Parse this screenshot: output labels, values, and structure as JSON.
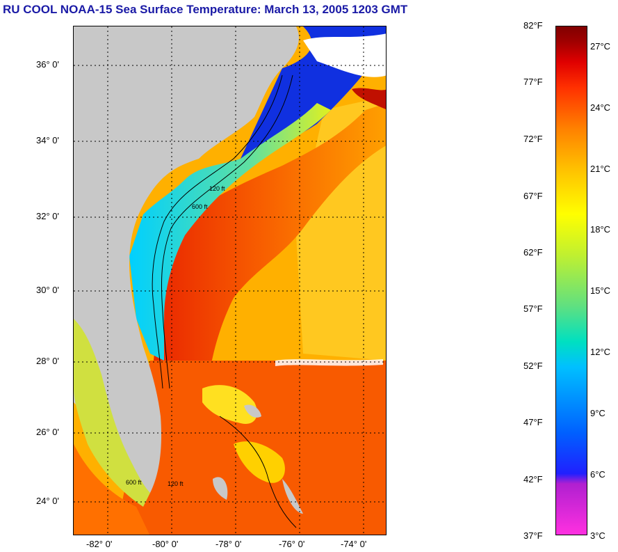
{
  "title": "RU COOL  NOAA-15  Sea Surface Temperature:  March 13, 2005 1203 GMT",
  "latitude_labels": [
    "36° 0'",
    "34° 0'",
    "32° 0'",
    "30° 0'",
    "28° 0'",
    "26° 0'",
    "24° 0'"
  ],
  "longitude_labels": [
    "-82° 0'",
    "-80° 0'",
    "-78° 0'",
    "-76° 0'",
    "-74° 0'"
  ],
  "colorbar": {
    "fahrenheit": [
      "82°F",
      "77°F",
      "72°F",
      "67°F",
      "62°F",
      "57°F",
      "52°F",
      "47°F",
      "42°F",
      "37°F"
    ],
    "celsius": [
      "27°C",
      "24°C",
      "21°C",
      "18°C",
      "15°C",
      "12°C",
      "9°C",
      "6°C",
      "3°C"
    ]
  },
  "colors": {
    "title": "#1a1aa6",
    "land": "#c8c8c8",
    "warm_ocean": "#f05a00",
    "mid_ocean": "#ffb000",
    "cool_shelf": "#00b0ff",
    "cold_shelf": "#1030e0",
    "clouds": "#ffffff"
  },
  "contour_labels": [
    "120 ft",
    "600 ft"
  ]
}
